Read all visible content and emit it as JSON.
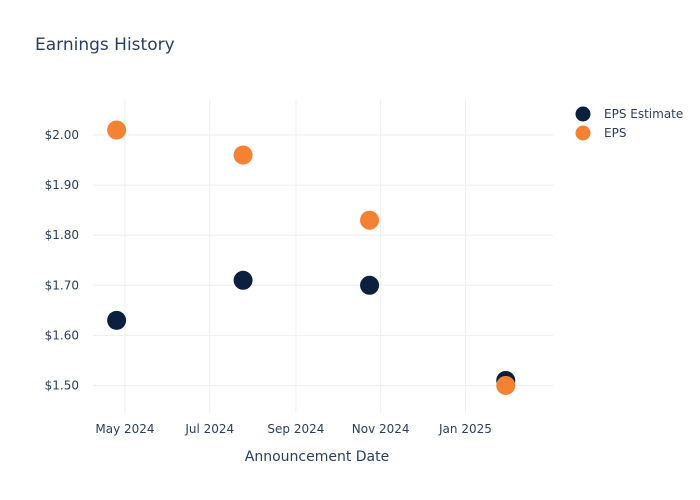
{
  "chart_data": {
    "type": "scatter",
    "title": "Earnings History",
    "xlabel": "Announcement Date",
    "ylabel": "",
    "x_ticks": [
      {
        "date": "2024-05-01",
        "label": "May 2024"
      },
      {
        "date": "2024-07-01",
        "label": "Jul 2024"
      },
      {
        "date": "2024-09-01",
        "label": "Sep 2024"
      },
      {
        "date": "2024-11-01",
        "label": "Nov 2024"
      },
      {
        "date": "2025-01-01",
        "label": "Jan 2025"
      }
    ],
    "y_ticks": [
      {
        "value": 1.5,
        "label": "$1.50"
      },
      {
        "value": 1.6,
        "label": "$1.60"
      },
      {
        "value": 1.7,
        "label": "$1.70"
      },
      {
        "value": 1.8,
        "label": "$1.80"
      },
      {
        "value": 1.9,
        "label": "$1.90"
      },
      {
        "value": 2.0,
        "label": "$2.00"
      }
    ],
    "xlim": [
      "2024-04-08",
      "2025-03-05"
    ],
    "ylim": [
      1.445,
      2.07
    ],
    "grid": true,
    "legend_position": "top-right",
    "series": [
      {
        "name": "EPS Estimate",
        "color": "#0b1f3f",
        "points": [
          {
            "x": "2024-04-25",
            "y": 1.63
          },
          {
            "x": "2024-07-25",
            "y": 1.71
          },
          {
            "x": "2024-10-24",
            "y": 1.7
          },
          {
            "x": "2025-01-30",
            "y": 1.51
          }
        ]
      },
      {
        "name": "EPS",
        "color": "#f58233",
        "points": [
          {
            "x": "2024-04-25",
            "y": 2.01
          },
          {
            "x": "2024-07-25",
            "y": 1.96
          },
          {
            "x": "2024-10-24",
            "y": 1.83
          },
          {
            "x": "2025-01-30",
            "y": 1.5
          }
        ]
      }
    ]
  }
}
